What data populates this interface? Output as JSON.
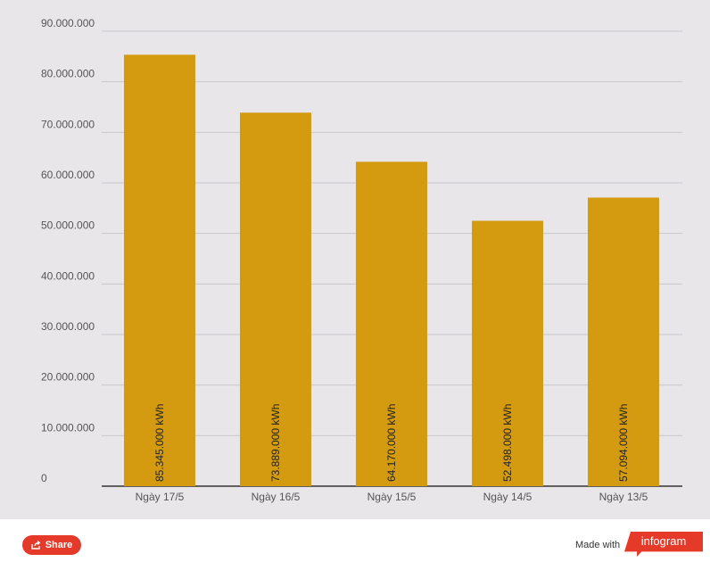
{
  "chart_data": {
    "type": "bar",
    "categories": [
      "Ngày 17/5",
      "Ngày 16/5",
      "Ngày 15/5",
      "Ngày 14/5",
      "Ngày 13/5"
    ],
    "values": [
      85345000,
      73889000,
      64170000,
      52498000,
      57094000
    ],
    "data_labels": [
      "85.345.000 kWh",
      "73.889.000 kWh",
      "64.170.000 kWh",
      "52.498.000 kWh",
      "57.094.000 kWh"
    ],
    "yticks": [
      0,
      10000000,
      20000000,
      30000000,
      40000000,
      50000000,
      60000000,
      70000000,
      80000000,
      90000000
    ],
    "ytick_labels": [
      "0",
      "10.000.000",
      "20.000.000",
      "30.000.000",
      "40.000.000",
      "50.000.000",
      "60.000.000",
      "70.000.000",
      "80.000.000",
      "90.000.000"
    ],
    "ylim": [
      0,
      90000000
    ],
    "grid": true,
    "bar_color": "#d49b11"
  },
  "footer": {
    "share_label": "Share",
    "made_with": "Made with",
    "brand": "infogram"
  }
}
